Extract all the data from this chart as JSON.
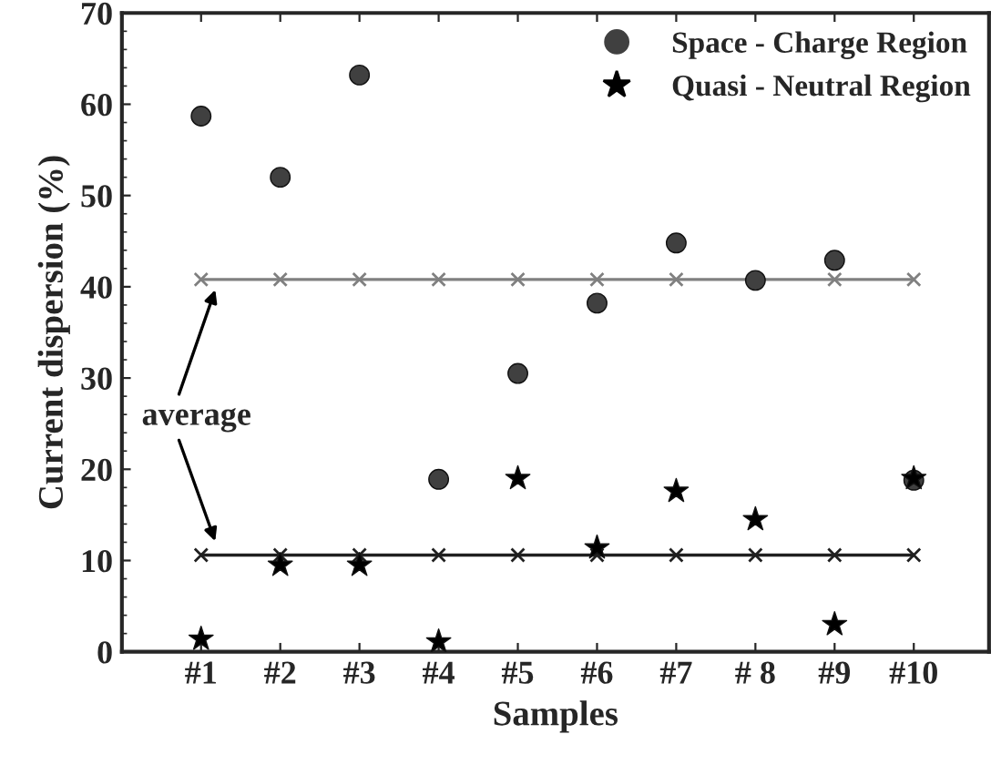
{
  "chart_data": {
    "type": "scatter",
    "xlabel": "Samples",
    "ylabel": "Current dispersion (%)",
    "categories": [
      "#1",
      "#2",
      "#3",
      "#4",
      "#5",
      "#6",
      "#7",
      "# 8",
      "#9",
      "#10"
    ],
    "series": [
      {
        "name": "Space - Charge Region",
        "marker": "circle",
        "color": "#404040",
        "values": [
          58.7,
          52.0,
          63.2,
          18.9,
          30.5,
          38.2,
          44.8,
          40.7,
          42.9,
          18.8
        ]
      },
      {
        "name": "Quasi - Neutral Region",
        "marker": "star",
        "color": "#000000",
        "values": [
          1.4,
          9.5,
          9.5,
          1.1,
          19.0,
          11.4,
          17.6,
          14.5,
          3.0,
          19.0
        ]
      },
      {
        "type": "line",
        "marker": "cross",
        "color": "#808080",
        "values": [
          40.8,
          40.8,
          40.8,
          40.8,
          40.8,
          40.8,
          40.8,
          40.8,
          40.8,
          40.8
        ]
      },
      {
        "type": "line",
        "marker": "cross",
        "color": "#202020",
        "values": [
          10.6,
          10.6,
          10.6,
          10.6,
          10.6,
          10.6,
          10.6,
          10.6,
          10.6,
          10.6
        ]
      }
    ],
    "annotations": [
      "average"
    ],
    "ylim": [
      0,
      70
    ],
    "yticks": [
      0,
      10,
      20,
      30,
      40,
      50,
      60,
      70
    ],
    "grid": false,
    "legend": "top right"
  }
}
